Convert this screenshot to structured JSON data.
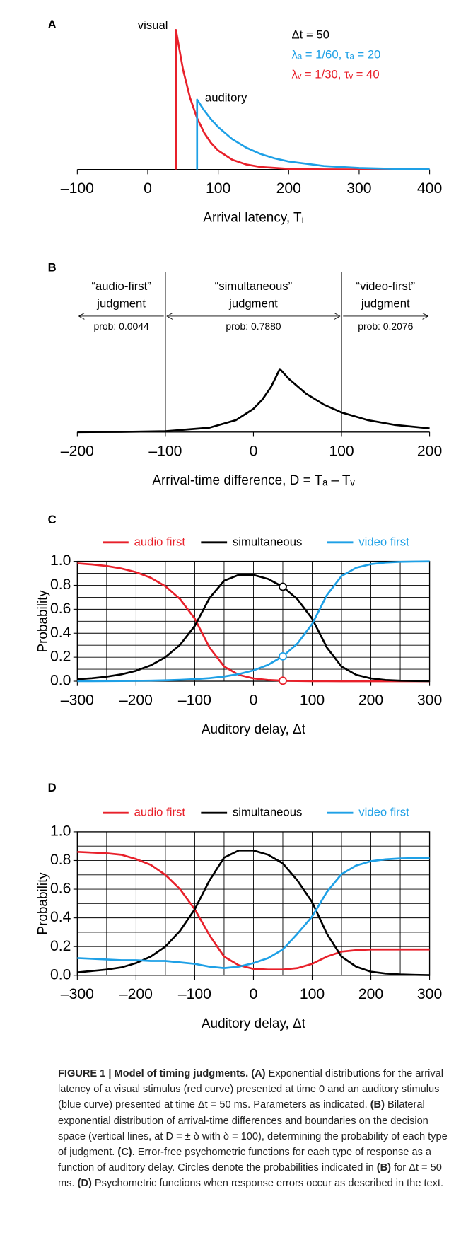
{
  "chart_data": [
    {
      "type": "line",
      "label": "A",
      "xlabel": "Arrival latency, Tᵢ",
      "xlim": [
        -100,
        400
      ],
      "ylim": [
        0,
        0.035
      ],
      "xticks": [
        {
          "value": -100,
          "label": "–100"
        },
        0,
        100,
        200,
        300,
        400
      ],
      "series": [
        {
          "name": "visual",
          "color": "#e8202a",
          "x": [
            40,
            40,
            50,
            60,
            70,
            80,
            90,
            100,
            120,
            140,
            160,
            200,
            250,
            300,
            400
          ],
          "values": [
            0,
            0.0333,
            0.02388,
            0.01711,
            0.01226,
            0.00879,
            0.0063,
            0.00451,
            0.00232,
            0.00119,
            0.00061,
            0.00016,
            3e-05,
            1e-05,
            0
          ]
        },
        {
          "name": "auditory",
          "color": "#1ea0e6",
          "x": [
            70,
            70,
            80,
            90,
            100,
            120,
            140,
            160,
            180,
            200,
            250,
            300,
            350,
            400
          ],
          "values": [
            0,
            0.01667,
            0.01411,
            0.01194,
            0.01011,
            0.00724,
            0.00519,
            0.00372,
            0.00266,
            0.00191,
            0.00083,
            0.00036,
            0.00016,
            7e-05
          ]
        }
      ],
      "annotations": [
        {
          "text": "Δt = 50",
          "color": "#000000"
        },
        {
          "text": "λₐ = 1/60, τₐ = 20",
          "color": "#1ea0e6"
        },
        {
          "text": "λᵥ = 1/30, τᵥ = 40",
          "color": "#e8202a"
        }
      ]
    },
    {
      "type": "line",
      "label": "B",
      "xlabel": "Arrival-time difference, D = Tₐ – Tᵥ",
      "xlim": [
        -200,
        200
      ],
      "ylim": [
        0,
        0.0125
      ],
      "xticks": [
        {
          "value": -200,
          "label": "–200"
        },
        {
          "value": -100,
          "label": "–100"
        },
        0,
        100,
        200
      ],
      "boundaries": [
        -100,
        100
      ],
      "judgments": [
        {
          "lines": [
            "“audio-first”",
            "judgment"
          ],
          "prob": "prob: 0.0044"
        },
        {
          "lines": [
            "“simultaneous”",
            "judgment"
          ],
          "prob": "prob: 0.7880"
        },
        {
          "lines": [
            "“video-first”",
            "judgment"
          ],
          "prob": "prob: 0.2076"
        }
      ],
      "series": [
        {
          "color": "#000000",
          "x": [
            -200,
            -150,
            -100,
            -50,
            -20,
            0,
            10,
            20,
            30,
            40,
            60,
            80,
            100,
            130,
            160,
            200
          ],
          "values": [
            5.2e-06,
            2.75e-05,
            0.000146,
            0.000772,
            0.0021,
            0.00409,
            0.0057,
            0.00796,
            0.01111,
            0.0094,
            0.00674,
            0.00483,
            0.00346,
            0.0021,
            0.00127,
            0.00065
          ]
        }
      ]
    },
    {
      "type": "line",
      "label": "C",
      "xlabel": "Auditory delay, Δt",
      "ylabel": "Probability",
      "xlim": [
        -300,
        300
      ],
      "ylim": [
        0,
        1
      ],
      "xticks": [
        {
          "value": -300,
          "label": "–300"
        },
        {
          "value": -200,
          "label": "–200"
        },
        {
          "value": -100,
          "label": "–100"
        },
        0,
        100,
        200,
        300
      ],
      "yticks": [
        {
          "value": 0,
          "label": "0.0"
        },
        0.2,
        0.4,
        0.6,
        0.8,
        {
          "value": 1,
          "label": "1.0"
        }
      ],
      "grid": true,
      "xgrid": [
        -300,
        -250,
        -200,
        -150,
        -100,
        -50,
        0,
        50,
        100,
        150,
        200,
        250,
        300
      ],
      "ygrid": [
        0,
        0.1,
        0.2,
        0.3,
        0.4,
        0.5,
        0.6,
        0.7,
        0.8,
        0.9,
        1
      ],
      "legend": "top",
      "marker_x": 50,
      "x": [
        -300,
        -275,
        -250,
        -225,
        -200,
        -175,
        -150,
        -125,
        -100,
        -75,
        -50,
        -25,
        0,
        25,
        50,
        75,
        100,
        125,
        150,
        175,
        200,
        225,
        250,
        275,
        300
      ],
      "series": [
        {
          "name": "audio first",
          "color": "#e8202a",
          "values": [
            0.983,
            0.974,
            0.961,
            0.9405,
            0.9098,
            0.8631,
            0.7924,
            0.685,
            0.5223,
            0.2822,
            0.1226,
            0.0533,
            0.0232,
            0.0101,
            0.0044,
            0.0019,
            0.0008,
            0.0004,
            0.0002,
            0.0001,
            0,
            0,
            0,
            0,
            0
          ]
        },
        {
          "name": "simultaneous",
          "color": "#000000",
          "values": [
            0.0164,
            0.025,
            0.0378,
            0.0574,
            0.087,
            0.132,
            0.2002,
            0.3038,
            0.4607,
            0.692,
            0.8382,
            0.8872,
            0.8866,
            0.853,
            0.788,
            0.6832,
            0.5215,
            0.2818,
            0.1224,
            0.0532,
            0.0232,
            0.0101,
            0.0044,
            0.0019,
            0.0008
          ]
        },
        {
          "name": "video first",
          "color": "#1ea0e6",
          "values": [
            0.0006,
            0.0009,
            0.0014,
            0.0021,
            0.0032,
            0.0049,
            0.0074,
            0.0112,
            0.017,
            0.0258,
            0.0392,
            0.0595,
            0.0902,
            0.1369,
            0.2076,
            0.3149,
            0.4777,
            0.7178,
            0.8774,
            0.9467,
            0.9768,
            0.9899,
            0.9956,
            0.9981,
            0.9992
          ]
        }
      ]
    },
    {
      "type": "line",
      "label": "D",
      "xlabel": "Auditory delay, Δt",
      "ylabel": "Probability",
      "xlim": [
        -300,
        300
      ],
      "ylim": [
        0,
        1
      ],
      "xticks": [
        {
          "value": -300,
          "label": "–300"
        },
        {
          "value": -200,
          "label": "–200"
        },
        {
          "value": -100,
          "label": "–100"
        },
        0,
        100,
        200,
        300
      ],
      "yticks": [
        {
          "value": 0,
          "label": "0.0"
        },
        0.2,
        0.4,
        0.6,
        0.8,
        {
          "value": 1,
          "label": "1.0"
        }
      ],
      "grid": true,
      "xgrid": [
        -300,
        -250,
        -200,
        -150,
        -100,
        -50,
        0,
        50,
        100,
        150,
        200,
        250,
        300
      ],
      "ygrid": [
        0,
        0.1,
        0.2,
        0.3,
        0.4,
        0.5,
        0.6,
        0.7,
        0.8,
        0.9,
        1
      ],
      "legend": "top",
      "x": [
        -300,
        -275,
        -250,
        -225,
        -200,
        -175,
        -150,
        -125,
        -100,
        -75,
        -50,
        -25,
        0,
        25,
        50,
        75,
        100,
        125,
        150,
        175,
        200,
        225,
        250,
        275,
        300
      ],
      "series": [
        {
          "name": "audio first",
          "color": "#e8202a",
          "values": [
            0.86,
            0.855,
            0.85,
            0.84,
            0.81,
            0.77,
            0.7,
            0.6,
            0.46,
            0.28,
            0.13,
            0.07,
            0.045,
            0.04,
            0.04,
            0.05,
            0.08,
            0.13,
            0.165,
            0.175,
            0.18,
            0.18,
            0.18,
            0.18,
            0.18
          ]
        },
        {
          "name": "simultaneous",
          "color": "#000000",
          "values": [
            0.02,
            0.03,
            0.04,
            0.055,
            0.085,
            0.13,
            0.2,
            0.31,
            0.46,
            0.66,
            0.82,
            0.87,
            0.87,
            0.84,
            0.78,
            0.66,
            0.51,
            0.29,
            0.13,
            0.06,
            0.025,
            0.012,
            0.006,
            0.003,
            0.001
          ]
        },
        {
          "name": "video first",
          "color": "#1ea0e6",
          "values": [
            0.12,
            0.115,
            0.11,
            0.105,
            0.105,
            0.1,
            0.1,
            0.09,
            0.08,
            0.06,
            0.05,
            0.06,
            0.085,
            0.12,
            0.18,
            0.29,
            0.41,
            0.58,
            0.705,
            0.765,
            0.795,
            0.808,
            0.814,
            0.817,
            0.819
          ]
        }
      ]
    }
  ],
  "caption": {
    "segments": [
      {
        "text": "FIGURE 1 | Model of timing judgments.",
        "bold": true
      },
      {
        "text": " "
      },
      {
        "text": "(A)",
        "bold": true
      },
      {
        "text": " Exponential distributions for the arrival latency of a visual stimulus (red curve) presented at time 0 and an auditory stimulus (blue curve) presented at time Δt = 50 ms. Parameters as indicated. "
      },
      {
        "text": "(B)",
        "bold": true
      },
      {
        "text": " Bilateral exponential distribution of arrival-time differences and boundaries on the decision space (vertical lines, at D = ± δ with δ = 100), determining the probability of each type of judgment. "
      },
      {
        "text": "(C)",
        "bold": true
      },
      {
        "text": ". Error-free psychometric functions for each type of response as a function of auditory delay. Circles denote the probabilities indicated in "
      },
      {
        "text": "(B)",
        "bold": true
      },
      {
        "text": " for Δt = 50 ms. "
      },
      {
        "text": "(D)",
        "bold": true
      },
      {
        "text": " Psychometric functions when response errors occur as described in the text."
      }
    ]
  }
}
